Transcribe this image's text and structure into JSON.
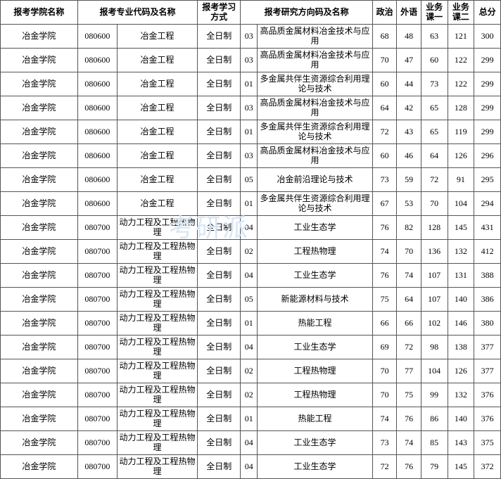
{
  "watermark": "考研派",
  "headers": {
    "college": "报考学院名称",
    "major": "报考专业代码及名称",
    "mode": "报考学习方式",
    "direction": "报考研究方向码及名称",
    "politics": "政治",
    "foreign": "外语",
    "sub1": "业务课一",
    "sub2": "业务课二",
    "total": "总分"
  },
  "col_widths": {
    "college": 102,
    "major_code": 52,
    "major_name": 106,
    "mode": 57,
    "dir_code": 22,
    "dir_name": 152,
    "politics": 32,
    "foreign": 32,
    "sub1": 35,
    "sub2": 35,
    "total": 35
  },
  "rows": [
    {
      "college": "冶金学院",
      "major_code": "080600",
      "major_name": "冶金工程",
      "mode": "全日制",
      "dir_code": "03",
      "dir_name": "高品质金属材料冶金技术与应用",
      "p": 68,
      "f": 48,
      "s1": 63,
      "s2": 121,
      "t": 300
    },
    {
      "college": "冶金学院",
      "major_code": "080600",
      "major_name": "冶金工程",
      "mode": "全日制",
      "dir_code": "03",
      "dir_name": "高品质金属材料冶金技术与应用",
      "p": 70,
      "f": 47,
      "s1": 60,
      "s2": 122,
      "t": 299
    },
    {
      "college": "冶金学院",
      "major_code": "080600",
      "major_name": "冶金工程",
      "mode": "全日制",
      "dir_code": "01",
      "dir_name": "多金属共伴生资源综合利用理论与技术",
      "p": 60,
      "f": 44,
      "s1": 73,
      "s2": 122,
      "t": 299
    },
    {
      "college": "冶金学院",
      "major_code": "080600",
      "major_name": "冶金工程",
      "mode": "全日制",
      "dir_code": "03",
      "dir_name": "高品质金属材料冶金技术与应用",
      "p": 64,
      "f": 42,
      "s1": 65,
      "s2": 128,
      "t": 299
    },
    {
      "college": "冶金学院",
      "major_code": "080600",
      "major_name": "冶金工程",
      "mode": "全日制",
      "dir_code": "01",
      "dir_name": "多金属共伴生资源综合利用理论与技术",
      "p": 72,
      "f": 43,
      "s1": 65,
      "s2": 119,
      "t": 299
    },
    {
      "college": "冶金学院",
      "major_code": "080600",
      "major_name": "冶金工程",
      "mode": "全日制",
      "dir_code": "03",
      "dir_name": "高品质金属材料冶金技术与应用",
      "p": 60,
      "f": 46,
      "s1": 64,
      "s2": 126,
      "t": 296
    },
    {
      "college": "冶金学院",
      "major_code": "080600",
      "major_name": "冶金工程",
      "mode": "全日制",
      "dir_code": "05",
      "dir_name": "冶金前沿理论与技术",
      "p": 73,
      "f": 59,
      "s1": 72,
      "s2": 91,
      "t": 295
    },
    {
      "college": "冶金学院",
      "major_code": "080600",
      "major_name": "冶金工程",
      "mode": "全日制",
      "dir_code": "01",
      "dir_name": "多金属共伴生资源综合利用理论与技术",
      "p": 67,
      "f": 53,
      "s1": 70,
      "s2": 104,
      "t": 294
    },
    {
      "college": "冶金学院",
      "major_code": "080700",
      "major_name": "动力工程及工程热物理",
      "mode": "全日制",
      "dir_code": "04",
      "dir_name": "工业生态学",
      "p": 76,
      "f": 82,
      "s1": 128,
      "s2": 145,
      "t": 431
    },
    {
      "college": "冶金学院",
      "major_code": "080700",
      "major_name": "动力工程及工程热物理",
      "mode": "全日制",
      "dir_code": "02",
      "dir_name": "工程热物理",
      "p": 74,
      "f": 70,
      "s1": 136,
      "s2": 132,
      "t": 412
    },
    {
      "college": "冶金学院",
      "major_code": "080700",
      "major_name": "动力工程及工程热物理",
      "mode": "全日制",
      "dir_code": "04",
      "dir_name": "工业生态学",
      "p": 76,
      "f": 74,
      "s1": 107,
      "s2": 131,
      "t": 388
    },
    {
      "college": "冶金学院",
      "major_code": "080700",
      "major_name": "动力工程及工程热物理",
      "mode": "全日制",
      "dir_code": "05",
      "dir_name": "新能源材料与技术",
      "p": 75,
      "f": 64,
      "s1": 107,
      "s2": 140,
      "t": 386
    },
    {
      "college": "冶金学院",
      "major_code": "080700",
      "major_name": "动力工程及工程热物理",
      "mode": "全日制",
      "dir_code": "01",
      "dir_name": "热能工程",
      "p": 66,
      "f": 66,
      "s1": 102,
      "s2": 146,
      "t": 380
    },
    {
      "college": "冶金学院",
      "major_code": "080700",
      "major_name": "动力工程及工程热物理",
      "mode": "全日制",
      "dir_code": "04",
      "dir_name": "工业生态学",
      "p": 69,
      "f": 72,
      "s1": 98,
      "s2": 138,
      "t": 377
    },
    {
      "college": "冶金学院",
      "major_code": "080700",
      "major_name": "动力工程及工程热物理",
      "mode": "全日制",
      "dir_code": "02",
      "dir_name": "工程热物理",
      "p": 70,
      "f": 77,
      "s1": 104,
      "s2": 126,
      "t": 377
    },
    {
      "college": "冶金学院",
      "major_code": "080700",
      "major_name": "动力工程及工程热物理",
      "mode": "全日制",
      "dir_code": "02",
      "dir_name": "工程热物理",
      "p": 70,
      "f": 75,
      "s1": 99,
      "s2": 132,
      "t": 376
    },
    {
      "college": "冶金学院",
      "major_code": "080700",
      "major_name": "动力工程及工程热物理",
      "mode": "全日制",
      "dir_code": "01",
      "dir_name": "热能工程",
      "p": 74,
      "f": 76,
      "s1": 86,
      "s2": 140,
      "t": 376
    },
    {
      "college": "冶金学院",
      "major_code": "080700",
      "major_name": "动力工程及工程热物理",
      "mode": "全日制",
      "dir_code": "04",
      "dir_name": "工业生态学",
      "p": 73,
      "f": 74,
      "s1": 85,
      "s2": 143,
      "t": 375
    },
    {
      "college": "冶金学院",
      "major_code": "080700",
      "major_name": "动力工程及工程热物理",
      "mode": "全日制",
      "dir_code": "04",
      "dir_name": "工业生态学",
      "p": 72,
      "f": 76,
      "s1": 79,
      "s2": 145,
      "t": 372
    }
  ]
}
